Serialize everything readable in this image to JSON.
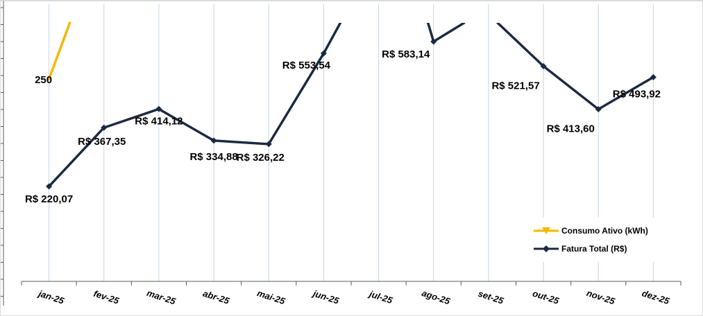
{
  "chart_data": {
    "type": "line",
    "categories": [
      "jan-25",
      "fev-25",
      "mar-25",
      "abr-25",
      "mai-25",
      "jun-25",
      "jul-25",
      "ago-25",
      "set-25",
      "out-25",
      "nov-25",
      "dez-25"
    ],
    "series": [
      {
        "name": "Consumo Ativo (kWh)",
        "color": "#F5B800",
        "marker": "triangle-down",
        "values": [
          250,
          null,
          null,
          null,
          null,
          null,
          null,
          null,
          null,
          null,
          null,
          null
        ],
        "labels": [
          "250",
          "",
          "",
          "",
          "",
          "",
          "",
          "",
          "",
          "",
          "",
          ""
        ]
      },
      {
        "name": "Fatura Total (R$)",
        "color": "#1B2A41",
        "marker": "diamond",
        "values": [
          220.07,
          367.35,
          414.12,
          334.88,
          326.22,
          553.54,
          null,
          583.14,
          null,
          521.57,
          413.6,
          493.92
        ],
        "labels": [
          "R$ 220,07",
          "R$ 367,35",
          "R$ 414,12",
          "R$ 334,88",
          "R$ 326,22",
          "R$ 553,54",
          "",
          "R$ 583,14",
          "",
          "R$ 521,57",
          "R$ 413,60",
          "R$ 493,92"
        ]
      }
    ],
    "legend": {
      "position": "bottom-right",
      "entries": [
        "Consumo Ativo (kWh)",
        "Fatura Total (R$)"
      ]
    },
    "grid": "vertical",
    "grid_color": "#C5D5E4",
    "axis_color": "#595959"
  }
}
